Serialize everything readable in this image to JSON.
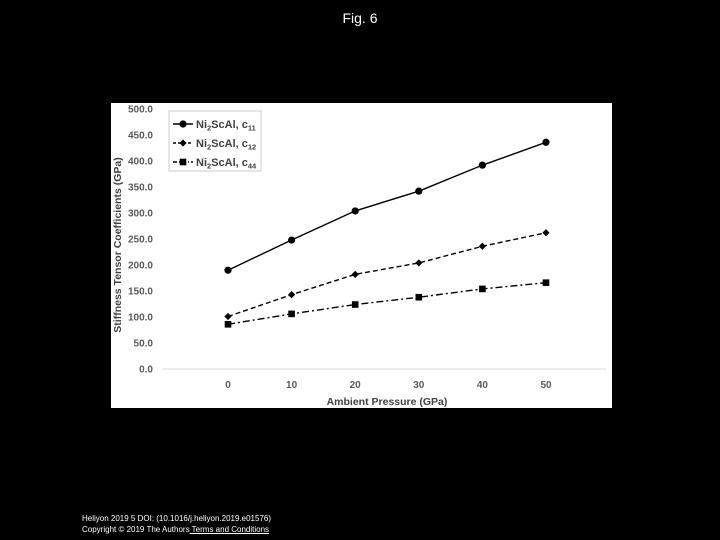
{
  "slide": {
    "title": "Fig. 6"
  },
  "footer": {
    "citation": "Heliyon 2019 5 DOI: (10.1016/j.heliyon.2019.e01576)",
    "copyright": "Copyright © 2019 The Authors",
    "terms_link": " Terms and Conditions"
  },
  "colors": {
    "page_background": "#000000",
    "figure_background": "#ffffff",
    "series": "#000000"
  },
  "chart_data": {
    "type": "line",
    "title": "",
    "xlabel": "Ambient Pressure (GPa)",
    "ylabel": "Stiffness Tensor Coefficients (GPa)",
    "x": [
      0,
      10,
      20,
      30,
      40,
      50
    ],
    "x_tick_labels": [
      "0",
      "10",
      "20",
      "30",
      "40",
      "50"
    ],
    "y_tick_labels": [
      "0.0",
      "50.0",
      "100.0",
      "150.0",
      "200.0",
      "250.0",
      "300.0",
      "350.0",
      "400.0",
      "450.0",
      "500.0"
    ],
    "ylim": [
      0,
      500
    ],
    "grid": false,
    "legend_position": "top-left",
    "series": [
      {
        "base": "Ni",
        "sub1": "2",
        "mid": "ScAl, c",
        "sub2": "11",
        "marker": "circle",
        "line_style": "solid",
        "values": [
          190,
          248,
          304,
          342,
          392,
          436
        ]
      },
      {
        "base": "Ni",
        "sub1": "2",
        "mid": "ScAl, c",
        "sub2": "12",
        "marker": "diamond",
        "line_style": "dashed",
        "values": [
          101,
          143,
          182,
          204,
          236,
          262
        ]
      },
      {
        "base": "Ni",
        "sub1": "2",
        "mid": "ScAl, c",
        "sub2": "44",
        "marker": "square",
        "line_style": "dash-dot",
        "values": [
          86,
          106,
          124,
          138,
          154,
          166
        ]
      }
    ]
  }
}
